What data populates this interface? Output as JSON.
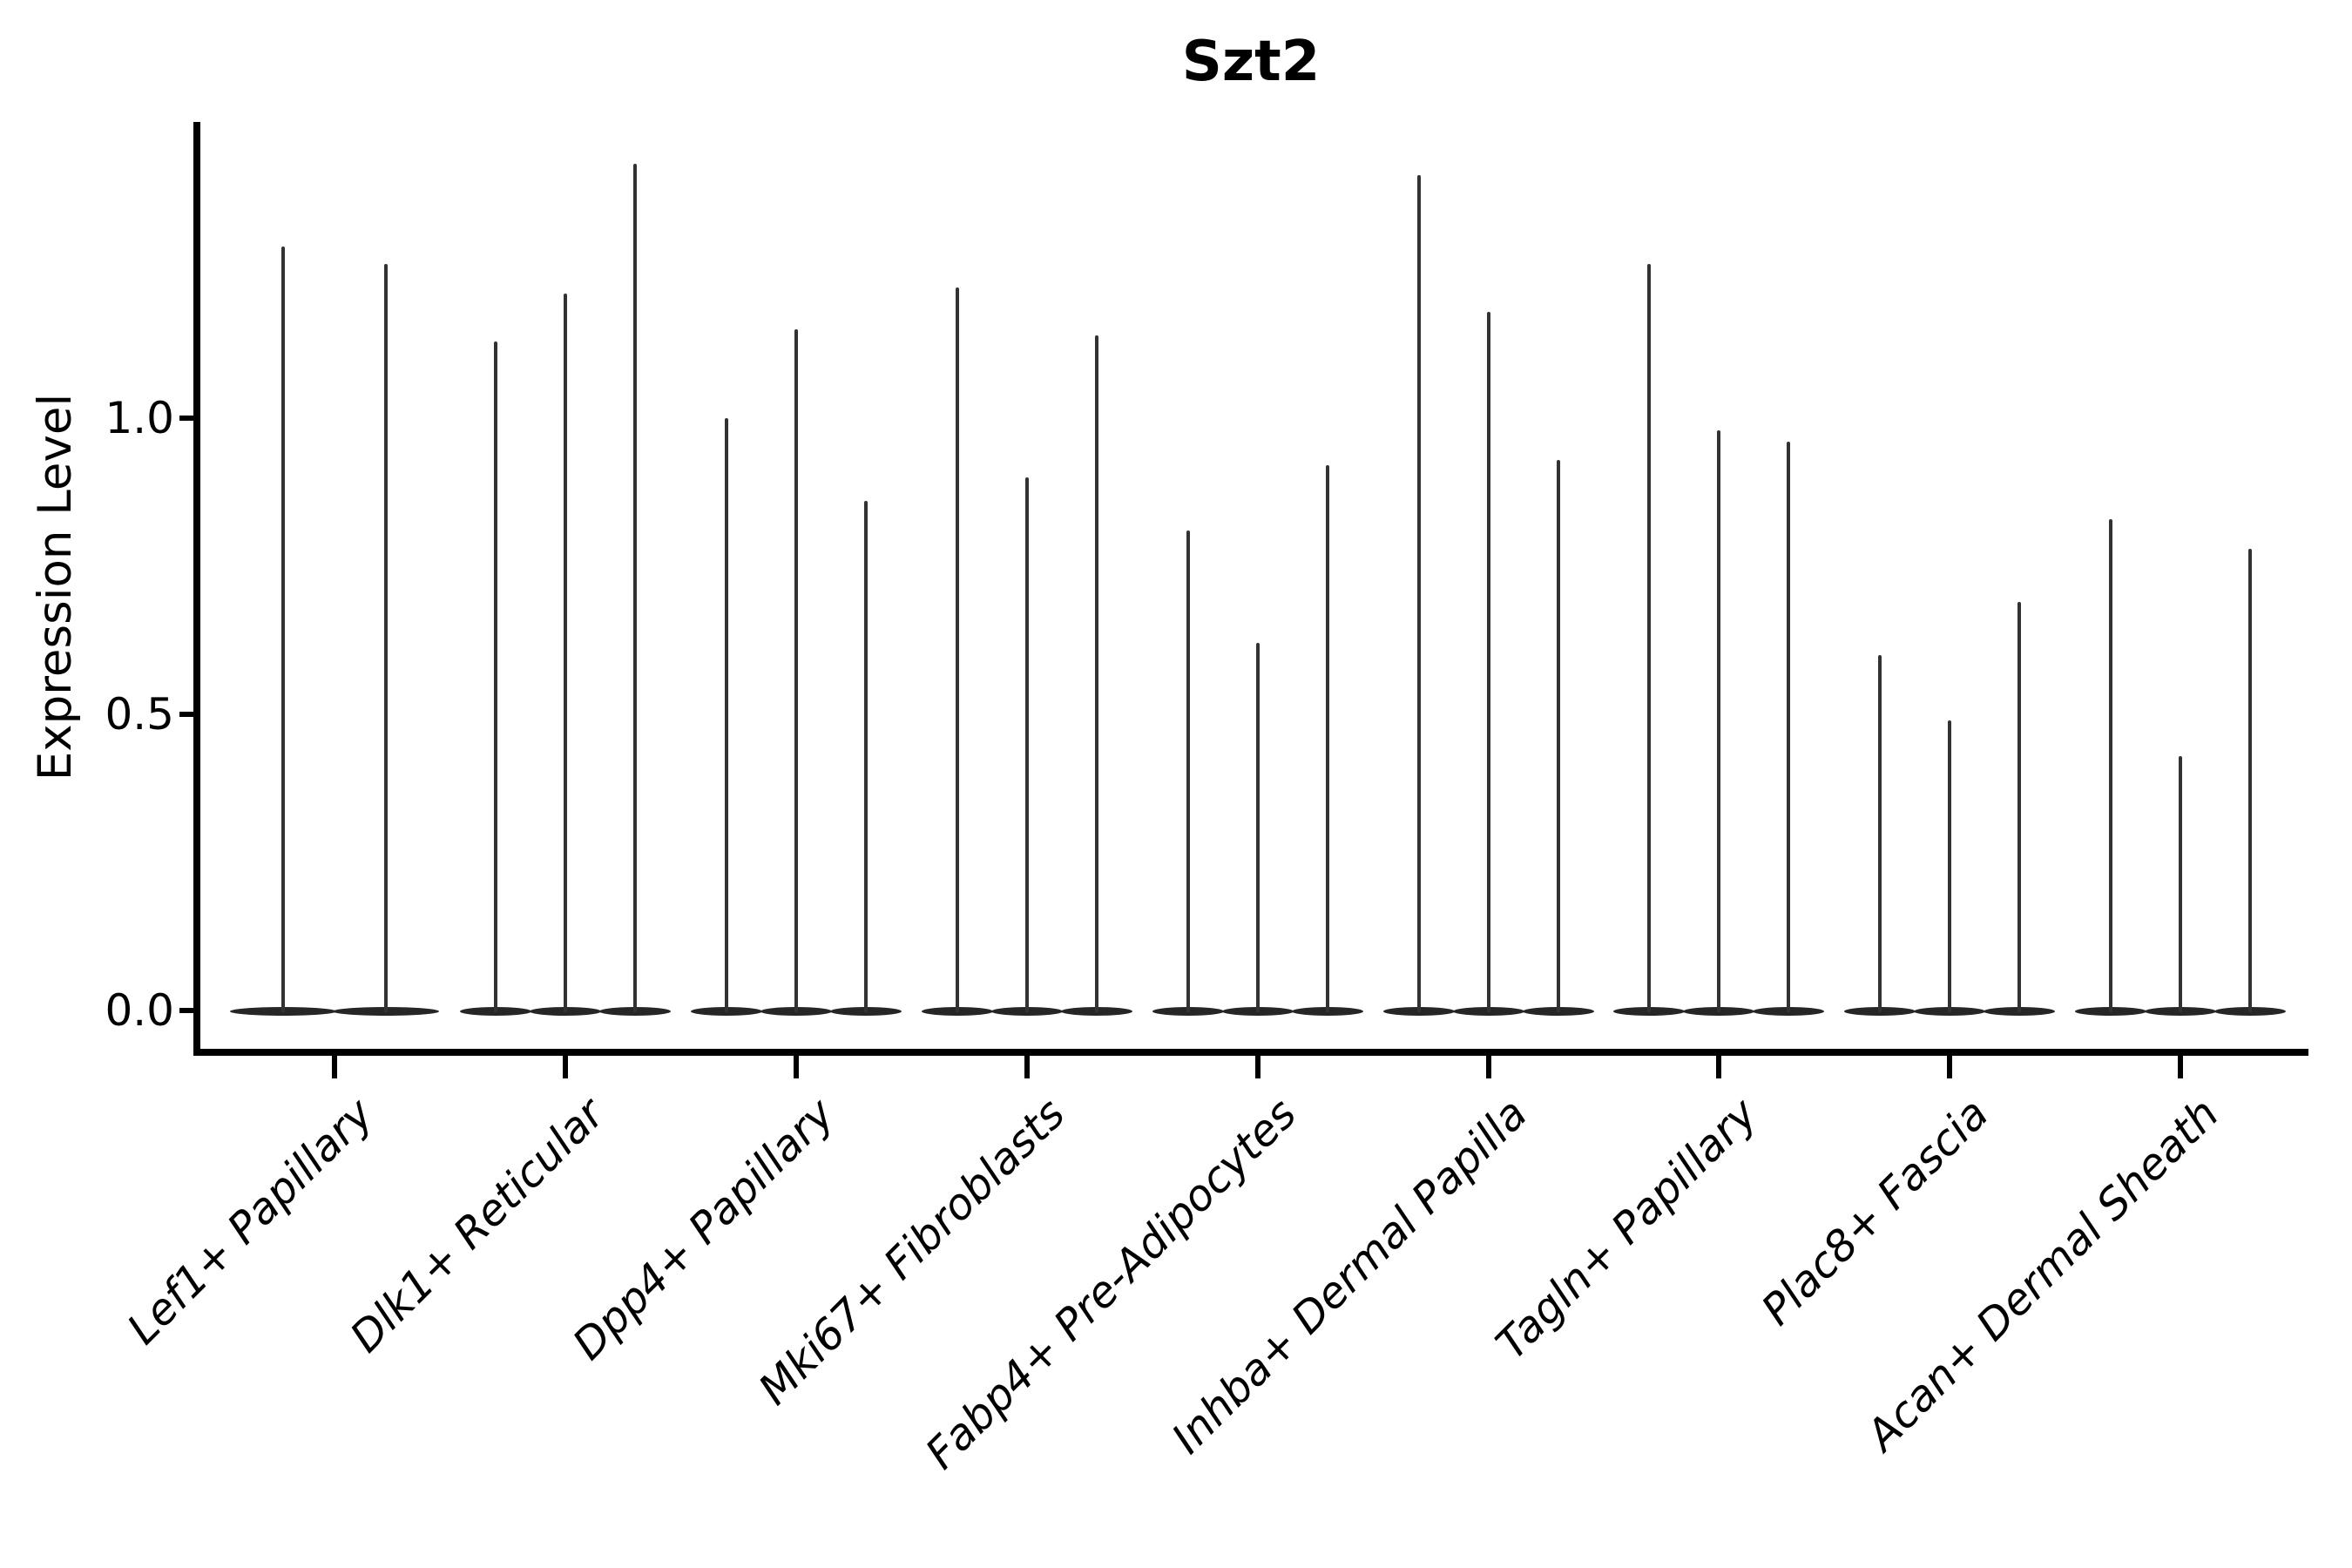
{
  "title": "Szt2",
  "y_axis": {
    "label": "Expression Level",
    "ticks": [
      {
        "label": "0.0",
        "value": 0.0
      },
      {
        "label": "0.5",
        "value": 0.5
      },
      {
        "label": "1.0",
        "value": 1.0
      }
    ]
  },
  "colors": {
    "violin_line": "#323232",
    "violin_base": "#262626",
    "axis": "#000000",
    "text": "#000000",
    "background": "#ffffff"
  },
  "chart_data": {
    "type": "violin",
    "title": "Szt2",
    "xlabel": "",
    "ylabel": "Expression Level",
    "ylim": [
      -0.07,
      1.5
    ],
    "yticks": [
      0.0,
      0.5,
      1.0
    ],
    "grid": false,
    "legend": "none",
    "style": "thin spike violins: near-zero width vertical lines with flat lens-shaped bases at y=0; x labels rotated 45 degrees italic",
    "categories": [
      "Lef1+ Papillary",
      "Dlk1+ Reticular",
      "Dpp4+ Papillary",
      "Mki67+ Fibroblasts",
      "Fabp4+ Pre-Adipocytes",
      "Inhba+ Dermal Papilla",
      "Tagln+ Papillary",
      "Plac8+ Fascia",
      "Acan+ Dermal Sheath"
    ],
    "groups": [
      {
        "category": "Lef1+ Papillary",
        "violin_max_values": [
          1.29,
          1.26
        ]
      },
      {
        "category": "Dlk1+ Reticular",
        "violin_max_values": [
          1.13,
          1.21,
          1.43
        ]
      },
      {
        "category": "Dpp4+ Papillary",
        "violin_max_values": [
          1.0,
          1.15,
          0.86
        ]
      },
      {
        "category": "Mki67+ Fibroblasts",
        "violin_max_values": [
          1.22,
          0.9,
          1.14
        ]
      },
      {
        "category": "Fabp4+ Pre-Adipocytes",
        "violin_max_values": [
          0.81,
          0.62,
          0.92
        ]
      },
      {
        "category": "Inhba+ Dermal Papilla",
        "violin_max_values": [
          1.41,
          1.18,
          0.93
        ]
      },
      {
        "category": "Tagln+ Papillary",
        "violin_max_values": [
          1.26,
          0.98,
          0.96
        ]
      },
      {
        "category": "Plac8+ Fascia",
        "violin_max_values": [
          0.6,
          0.49,
          0.69
        ]
      },
      {
        "category": "Acan+ Dermal Sheath",
        "violin_max_values": [
          0.83,
          0.43,
          0.78
        ]
      }
    ]
  }
}
